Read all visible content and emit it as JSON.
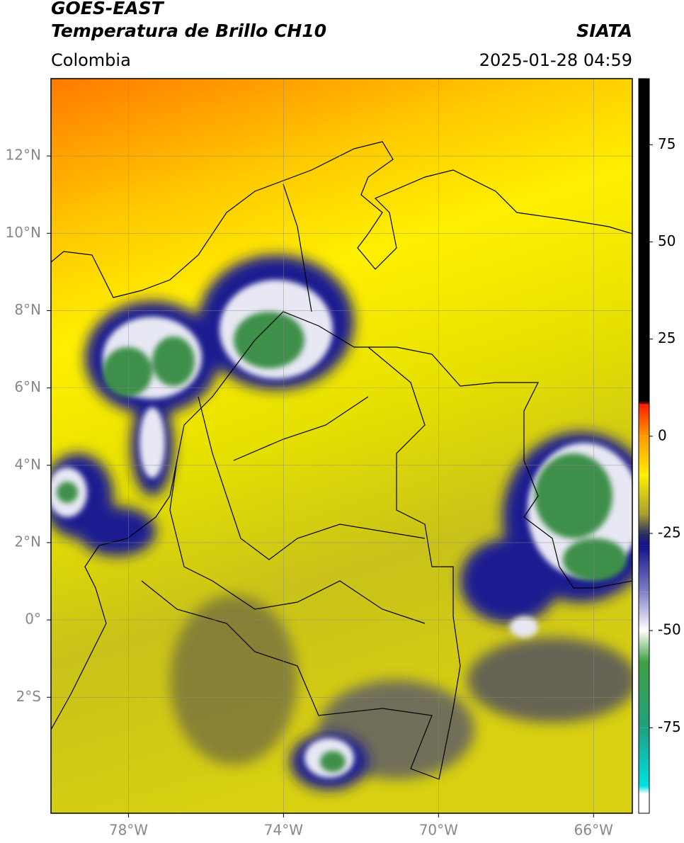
{
  "header": {
    "title": "GOES-EAST",
    "subtitle": "Temperatura de Brillo CH10",
    "source": "SIATA",
    "region": "Colombia",
    "datetime": "2025-01-28 04:59"
  },
  "map": {
    "xlim": [
      -80,
      -65
    ],
    "ylim": [
      -5,
      14
    ],
    "xticks": [
      {
        "value": -78,
        "label": "78°W"
      },
      {
        "value": -74,
        "label": "74°W"
      },
      {
        "value": -70,
        "label": "70°W"
      },
      {
        "value": -66,
        "label": "66°W"
      }
    ],
    "yticks": [
      {
        "value": 12,
        "label": "12°N"
      },
      {
        "value": 10,
        "label": "10°N"
      },
      {
        "value": 8,
        "label": "8°N"
      },
      {
        "value": 6,
        "label": "6°N"
      },
      {
        "value": 4,
        "label": "4°N"
      },
      {
        "value": 2,
        "label": "2°N"
      },
      {
        "value": 0,
        "label": "0°"
      },
      {
        "value": -2,
        "label": "2°S"
      }
    ],
    "grid": true
  },
  "colorbar": {
    "lim": [
      -97,
      92
    ],
    "ticks": [
      75,
      50,
      25,
      0,
      -25,
      -50,
      -75
    ],
    "stops": [
      {
        "value": 92,
        "color": "#000000"
      },
      {
        "value": 9,
        "color": "#000000"
      },
      {
        "value": 8,
        "color": "#ff2000"
      },
      {
        "value": 0,
        "color": "#ff9a00"
      },
      {
        "value": -10,
        "color": "#ffee00"
      },
      {
        "value": -20,
        "color": "#a8a030"
      },
      {
        "value": -25,
        "color": "#303060"
      },
      {
        "value": -28,
        "color": "#10108a"
      },
      {
        "value": -40,
        "color": "#8080c8"
      },
      {
        "value": -50,
        "color": "#ffffff"
      },
      {
        "value": -58,
        "color": "#40a040"
      },
      {
        "value": -75,
        "color": "#20a080"
      },
      {
        "value": -90,
        "color": "#00e0e0"
      },
      {
        "value": -92,
        "color": "#ffffff"
      },
      {
        "value": -97,
        "color": "#ffffff"
      }
    ]
  }
}
